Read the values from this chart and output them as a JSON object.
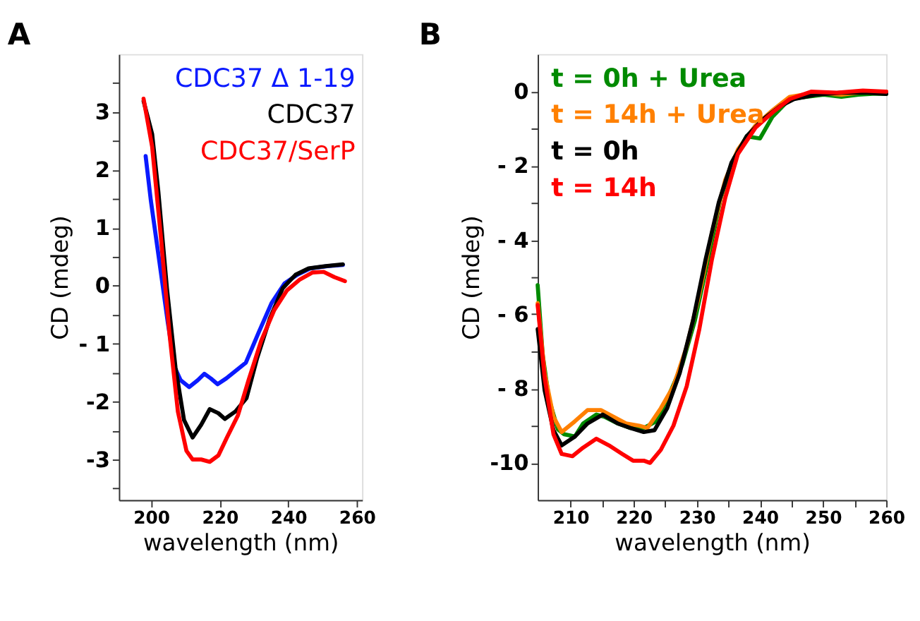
{
  "chart_data": [
    {
      "type": "line",
      "title": "A",
      "xlabel": "wavelength (nm)",
      "ylabel": "CD (mdeg)",
      "legend": "top right",
      "grid": false,
      "line_style": "solid",
      "xlim": [
        190.6,
        261.5
      ],
      "xticks": [
        200,
        220,
        240,
        260
      ],
      "ylim": [
        -3.7,
        4.0
      ],
      "yticks": [
        {
          "value": 3.5,
          "label": null
        },
        3,
        {
          "value": 2.5,
          "label": null
        },
        2,
        {
          "value": 1.5,
          "label": null
        },
        1,
        {
          "value": 0.5,
          "label": null
        },
        0,
        {
          "value": -0.5,
          "label": null
        },
        {
          "value": -1,
          "label": "- 1"
        },
        {
          "value": -1.5,
          "label": null
        },
        -2,
        {
          "value": -2.5,
          "label": null
        },
        -3,
        {
          "value": -3.5,
          "label": null
        }
      ],
      "series": [
        {
          "name": "CDC37 Δ 1-19",
          "color": "#0a1aff",
          "x": [
            198.4,
            199.9,
            202.4,
            204.9,
            206.9,
            208.6,
            211.1,
            213.6,
            215.5,
            217.4,
            219.4,
            221.9,
            224.4,
            227.6,
            231.4,
            235.1,
            238.9,
            242.6,
            246.4,
            251.4,
            255.9
          ],
          "values": [
            2.24,
            1.48,
            0.42,
            -0.65,
            -1.41,
            -1.63,
            -1.75,
            -1.63,
            -1.52,
            -1.6,
            -1.7,
            -1.6,
            -1.48,
            -1.33,
            -0.8,
            -0.3,
            0.04,
            0.19,
            0.3,
            0.34,
            0.36
          ]
        },
        {
          "name": "CDC37",
          "color": "#000000",
          "x": [
            197.8,
            200.3,
            202.1,
            204.6,
            207.1,
            209.6,
            212.1,
            214.6,
            217.1,
            219.6,
            221.5,
            224.6,
            227.8,
            230.9,
            234.6,
            238.4,
            242.1,
            245.9,
            250.9,
            255.9
          ],
          "values": [
            3.19,
            2.62,
            1.63,
            -0.04,
            -1.41,
            -2.32,
            -2.62,
            -2.4,
            -2.13,
            -2.2,
            -2.3,
            -2.17,
            -1.94,
            -1.25,
            -0.57,
            -0.04,
            0.19,
            0.3,
            0.34,
            0.37
          ]
        },
        {
          "name": "CDC37/SerP",
          "color": "#ff0000",
          "x": [
            197.8,
            200.3,
            202.8,
            205.3,
            207.8,
            210.3,
            212.1,
            214.6,
            217.1,
            219.6,
            222.1,
            225.3,
            228.4,
            232.1,
            235.9,
            239.6,
            243.4,
            247.1,
            250.3,
            253.4,
            256.5
          ],
          "values": [
            3.23,
            2.4,
            0.87,
            -0.8,
            -2.17,
            -2.85,
            -3.0,
            -3.0,
            -3.04,
            -2.93,
            -2.62,
            -2.24,
            -1.63,
            -0.95,
            -0.42,
            -0.08,
            0.11,
            0.23,
            0.24,
            0.15,
            0.08
          ]
        }
      ]
    },
    {
      "type": "line",
      "title": "B",
      "xlabel": "wavelength (nm)",
      "ylabel": "CD (mdeg)",
      "legend": "top left",
      "grid": false,
      "line_style": "solid",
      "xlim": [
        204.8,
        260
      ],
      "xticks": [
        210,
        {
          "value": 215,
          "label": null
        },
        220,
        {
          "value": 225,
          "label": null
        },
        230,
        {
          "value": 235,
          "label": null
        },
        240,
        {
          "value": 245,
          "label": null
        },
        250,
        {
          "value": 255,
          "label": null
        },
        260
      ],
      "ylim": [
        -11,
        1
      ],
      "yticks": [
        0,
        {
          "value": -1,
          "label": null
        },
        {
          "value": -2,
          "label": "- 2"
        },
        {
          "value": -3,
          "label": null
        },
        {
          "value": -4,
          "label": "- 4"
        },
        {
          "value": -5,
          "label": null
        },
        {
          "value": -6,
          "label": "- 6"
        },
        {
          "value": -7,
          "label": null
        },
        {
          "value": -8,
          "label": "- 8"
        },
        {
          "value": -9,
          "label": null
        },
        -10
      ],
      "series": [
        {
          "name": "t = 0h   + Urea",
          "color": "#008a00",
          "x": [
            204.8,
            205.6,
            206.6,
            208,
            209,
            210.7,
            212,
            214.1,
            215.4,
            217.5,
            219.5,
            221.6,
            223.6,
            225.6,
            227.7,
            229.7,
            231.8,
            233.8,
            235.9,
            237.9,
            240,
            242,
            244.7,
            247.4,
            250.1,
            252.9,
            255.6,
            258.3,
            260
          ],
          "values": [
            -5.22,
            -7.1,
            -8.29,
            -9.1,
            -9.23,
            -9.29,
            -8.94,
            -8.7,
            -8.76,
            -8.94,
            -9.06,
            -9.06,
            -8.88,
            -8.17,
            -7.35,
            -6.17,
            -4.52,
            -2.87,
            -1.8,
            -1.21,
            -1.27,
            -0.68,
            -0.21,
            -0.15,
            -0.09,
            -0.15,
            -0.09,
            -0.06,
            -0.07
          ]
        },
        {
          "name": "t = 14h + Urea",
          "color": "#ff8000",
          "x": [
            204.8,
            205.9,
            207.3,
            208.6,
            210.7,
            212.7,
            214.8,
            216.8,
            218.8,
            220.9,
            222.2,
            224.3,
            226.3,
            228.4,
            230.4,
            232.4,
            234.5,
            236.5,
            239.3,
            242,
            244.7,
            248.8,
            252.9,
            257,
            260
          ],
          "values": [
            -5.7,
            -7.58,
            -8.76,
            -9.17,
            -8.88,
            -8.58,
            -8.58,
            -8.76,
            -8.94,
            -9.0,
            -9.06,
            -8.53,
            -7.94,
            -6.87,
            -5.46,
            -3.81,
            -2.39,
            -1.57,
            -0.92,
            -0.51,
            -0.15,
            -0.04,
            -0.09,
            -0.01,
            -0.01
          ]
        },
        {
          "name": "t = 0h",
          "color": "#000000",
          "x": [
            204.8,
            205.9,
            207.3,
            208.6,
            210.7,
            212.7,
            215.1,
            217.5,
            219.5,
            221.6,
            223.3,
            225.3,
            227.3,
            229.4,
            231.4,
            233.5,
            235.5,
            237.9,
            240.6,
            243.3,
            245.4,
            248.8,
            252.9,
            257,
            260
          ],
          "values": [
            -6.4,
            -8.05,
            -9.12,
            -9.53,
            -9.29,
            -8.94,
            -8.7,
            -8.94,
            -9.06,
            -9.17,
            -9.12,
            -8.53,
            -7.58,
            -6.17,
            -4.52,
            -2.98,
            -1.92,
            -1.21,
            -0.74,
            -0.39,
            -0.21,
            -0.09,
            -0.04,
            -0.04,
            -0.07
          ]
        },
        {
          "name": "t = 14h",
          "color": "#ff0000",
          "x": [
            204.8,
            205.9,
            207.3,
            208.6,
            210.3,
            212,
            214.1,
            216.1,
            218.2,
            219.9,
            221.6,
            222.6,
            224.3,
            226.3,
            228.4,
            230.4,
            232.4,
            234.5,
            236.5,
            239.3,
            242,
            244.7,
            248.1,
            252.2,
            256.3,
            260
          ],
          "values": [
            -5.75,
            -7.7,
            -9.23,
            -9.76,
            -9.82,
            -9.59,
            -9.35,
            -9.53,
            -9.76,
            -9.94,
            -9.94,
            -10.0,
            -9.65,
            -9.0,
            -7.94,
            -6.4,
            -4.52,
            -2.87,
            -1.69,
            -0.98,
            -0.57,
            -0.21,
            -0.01,
            -0.04,
            0.02,
            -0.01
          ]
        }
      ]
    }
  ]
}
